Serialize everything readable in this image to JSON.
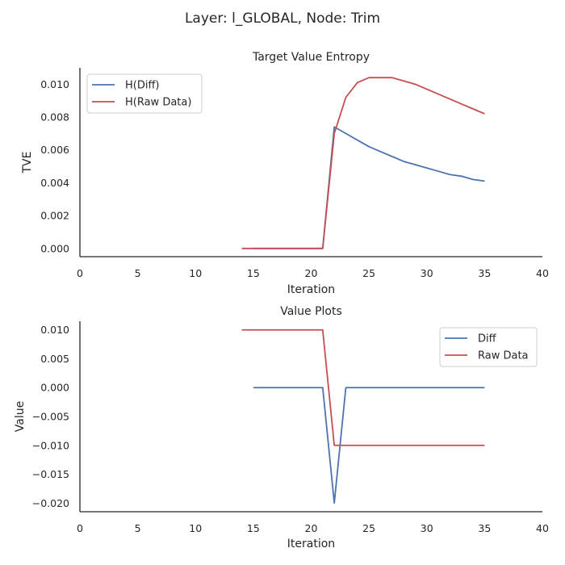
{
  "suptitle": "Layer: l_GLOBAL, Node: Trim",
  "colors": {
    "blue": "#4c72b0",
    "red": "#c44e52"
  },
  "chart_data": [
    {
      "type": "line",
      "title": "Target Value Entropy",
      "xlabel": "Iteration",
      "ylabel": "TVE",
      "xlim": [
        0,
        40
      ],
      "ylim": [
        -0.0005,
        0.011
      ],
      "xticks": [
        0,
        5,
        10,
        15,
        20,
        25,
        30,
        35,
        40
      ],
      "xtick_labels": [
        "0",
        "5",
        "10",
        "15",
        "20",
        "25",
        "30",
        "35",
        "40"
      ],
      "yticks": [
        0,
        0.002,
        0.004,
        0.006,
        0.008,
        0.01
      ],
      "ytick_labels": [
        "0.000",
        "0.002",
        "0.004",
        "0.006",
        "0.008",
        "0.010"
      ],
      "legend_loc": "upper-left",
      "grid": false,
      "series": [
        {
          "name": "H(Diff)",
          "color": "#4c72b0",
          "x": [
            15,
            16,
            17,
            18,
            19,
            20,
            21,
            22,
            23,
            24,
            25,
            26,
            27,
            28,
            29,
            30,
            31,
            32,
            33,
            34,
            35
          ],
          "y": [
            0,
            0,
            0,
            0,
            0,
            0,
            0,
            0.0074,
            0.007,
            0.0066,
            0.0062,
            0.0059,
            0.0056,
            0.0053,
            0.0051,
            0.0049,
            0.0047,
            0.0045,
            0.0044,
            0.0042,
            0.0041
          ]
        },
        {
          "name": "H(Raw Data)",
          "color": "#c44e52",
          "x": [
            14,
            15,
            16,
            17,
            18,
            19,
            20,
            21,
            22,
            23,
            24,
            25,
            26,
            27,
            28,
            29,
            30,
            31,
            32,
            33,
            34,
            35
          ],
          "y": [
            0,
            0,
            0,
            0,
            0,
            0,
            0,
            0,
            0.007,
            0.0092,
            0.0101,
            0.0104,
            0.0104,
            0.0104,
            0.0102,
            0.01,
            0.0097,
            0.0094,
            0.0091,
            0.0088,
            0.0085,
            0.0082
          ]
        }
      ]
    },
    {
      "type": "line",
      "title": "Value Plots",
      "xlabel": "Iteration",
      "ylabel": "Value",
      "xlim": [
        0,
        40
      ],
      "ylim": [
        -0.0215,
        0.0115
      ],
      "xticks": [
        0,
        5,
        10,
        15,
        20,
        25,
        30,
        35,
        40
      ],
      "xtick_labels": [
        "0",
        "5",
        "10",
        "15",
        "20",
        "25",
        "30",
        "35",
        "40"
      ],
      "yticks": [
        0.01,
        0.005,
        0,
        -0.005,
        -0.01,
        -0.015,
        -0.02
      ],
      "ytick_labels": [
        "0.010",
        "0.005",
        "0.000",
        "−0.005",
        "−0.010",
        "−0.015",
        "−0.020"
      ],
      "legend_loc": "upper-right",
      "grid": false,
      "series": [
        {
          "name": "Diff",
          "color": "#4c72b0",
          "x": [
            15,
            16,
            17,
            18,
            19,
            20,
            21,
            22,
            23,
            24,
            25,
            26,
            27,
            28,
            29,
            30,
            31,
            32,
            33,
            34,
            35
          ],
          "y": [
            0,
            0,
            0,
            0,
            0,
            0,
            0,
            -0.02,
            0,
            0,
            0,
            0,
            0,
            0,
            0,
            0,
            0,
            0,
            0,
            0,
            0
          ]
        },
        {
          "name": "Raw Data",
          "color": "#c44e52",
          "x": [
            14,
            15,
            16,
            17,
            18,
            19,
            20,
            21,
            22,
            23,
            24,
            25,
            26,
            27,
            28,
            29,
            30,
            31,
            32,
            33,
            34,
            35
          ],
          "y": [
            0.01,
            0.01,
            0.01,
            0.01,
            0.01,
            0.01,
            0.01,
            0.01,
            -0.01,
            -0.01,
            -0.01,
            -0.01,
            -0.01,
            -0.01,
            -0.01,
            -0.01,
            -0.01,
            -0.01,
            -0.01,
            -0.01,
            -0.01,
            -0.01
          ]
        }
      ]
    }
  ]
}
